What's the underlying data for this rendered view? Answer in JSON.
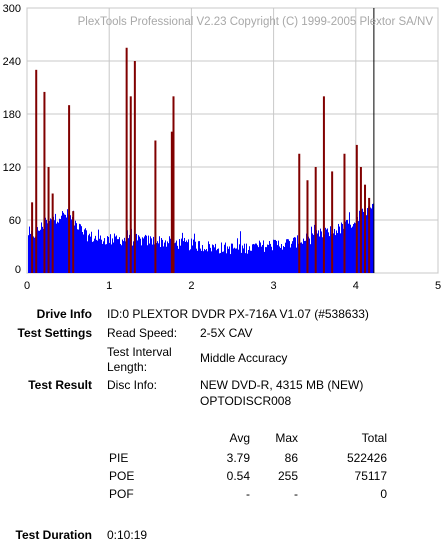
{
  "chart_data": {
    "type": "bar",
    "title": "PlexTools Professional V2.23 Copyright (C) 1999-2005 Plextor SA/NV",
    "xlim": [
      0,
      5
    ],
    "ylim": [
      0,
      300
    ],
    "x_ticks": [
      "0",
      "1",
      "2",
      "3",
      "4",
      "5"
    ],
    "y_ticks": [
      "0",
      "60",
      "120",
      "180",
      "240",
      "300"
    ],
    "grid": true,
    "data_end_x": 4.22,
    "series": [
      {
        "name": "PIE",
        "color": "#0000ff",
        "x": [
          0.0,
          0.1,
          0.2,
          0.3,
          0.4,
          0.5,
          0.6,
          0.7,
          0.8,
          0.9,
          1.0,
          1.2,
          1.4,
          1.6,
          1.8,
          2.0,
          2.2,
          2.4,
          2.6,
          2.8,
          3.0,
          3.2,
          3.4,
          3.6,
          3.8,
          4.0,
          4.1,
          4.2
        ],
        "y": [
          40,
          45,
          55,
          60,
          65,
          66,
          55,
          44,
          40,
          38,
          38,
          38,
          37,
          36,
          34,
          32,
          30,
          28,
          28,
          30,
          32,
          34,
          38,
          45,
          50,
          60,
          70,
          80
        ]
      },
      {
        "name": "POE",
        "color": "#800000",
        "x": [
          0.05,
          0.1,
          0.2,
          0.25,
          0.3,
          0.5,
          0.55,
          1.2,
          1.25,
          1.3,
          1.55,
          1.75,
          1.77,
          3.3,
          3.4,
          3.5,
          3.6,
          3.7,
          3.85,
          4.0,
          4.05,
          4.1,
          4.15
        ],
        "y": [
          80,
          230,
          205,
          120,
          90,
          190,
          70,
          255,
          200,
          240,
          150,
          160,
          200,
          135,
          105,
          120,
          200,
          115,
          135,
          145,
          120,
          100,
          85
        ]
      }
    ]
  },
  "drive_info": {
    "label": "Drive Info",
    "value": "ID:0 PLEXTOR DVDR PX-716A V1.07 (#538633)"
  },
  "test_settings": {
    "label": "Test Settings",
    "read_speed_label": "Read Speed:",
    "read_speed_value": "2-5X CAV",
    "interval_label_1": "Test Interval",
    "interval_label_2": "Length:",
    "interval_value": "Middle Accuracy"
  },
  "test_result": {
    "label": "Test Result",
    "disc_info_label": "Disc Info:",
    "disc_info_line1": "NEW DVD-R, 4315 MB (NEW)",
    "disc_info_line2": "OPTODISCR008",
    "headers": {
      "avg": "Avg",
      "max": "Max",
      "total": "Total"
    },
    "rows": [
      {
        "name": "PIE",
        "avg": "3.79",
        "max": "86",
        "total": "522426"
      },
      {
        "name": "POE",
        "avg": "0.54",
        "max": "255",
        "total": "75117"
      },
      {
        "name": "POF",
        "avg": "-",
        "max": "-",
        "total": "0"
      }
    ]
  },
  "test_duration": {
    "label": "Test Duration",
    "value": "0:10:19"
  }
}
